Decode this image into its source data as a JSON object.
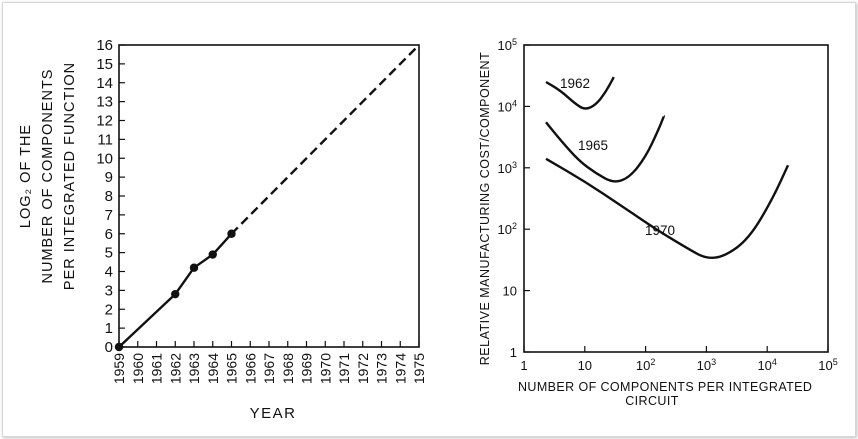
{
  "chart_data": [
    {
      "type": "line",
      "ylabel_lines": [
        "LOG₂ OF THE",
        "NUMBER OF COMPONENTS",
        "PER INTEGRATED FUNCTION"
      ],
      "xlabel": "YEAR",
      "x_ticks": [
        1959,
        1960,
        1961,
        1962,
        1963,
        1964,
        1965,
        1966,
        1967,
        1968,
        1969,
        1970,
        1971,
        1972,
        1973,
        1974,
        1975
      ],
      "y_ticks": [
        0,
        1,
        2,
        3,
        4,
        5,
        6,
        7,
        8,
        9,
        10,
        11,
        12,
        13,
        14,
        15,
        16
      ],
      "xlim": [
        1959,
        1975
      ],
      "ylim": [
        0,
        16
      ],
      "series": [
        {
          "style": "solid-with-markers",
          "x": [
            1959,
            1962,
            1963,
            1964,
            1965
          ],
          "y": [
            0,
            2.8,
            4.2,
            4.9,
            6.0
          ]
        },
        {
          "style": "dashed",
          "x": [
            1965,
            1975
          ],
          "y": [
            6.0,
            16.0
          ]
        }
      ]
    },
    {
      "type": "line",
      "ylabel": "RELATIVE MANUFACTURING COST/COMPONENT",
      "xlabel_lines": [
        "NUMBER OF COMPONENTS PER INTEGRATED",
        "CIRCUIT"
      ],
      "x_scale": "log",
      "y_scale": "log",
      "xlim": [
        1,
        100000
      ],
      "ylim": [
        1,
        100000
      ],
      "x_ticks": [
        {
          "value": 1,
          "base": "1",
          "exp": ""
        },
        {
          "value": 10,
          "base": "10",
          "exp": ""
        },
        {
          "value": 100,
          "base": "10",
          "exp": "2"
        },
        {
          "value": 1000,
          "base": "10",
          "exp": "3"
        },
        {
          "value": 10000,
          "base": "10",
          "exp": "4"
        },
        {
          "value": 100000,
          "base": "10",
          "exp": "5"
        }
      ],
      "y_ticks": [
        {
          "value": 1,
          "base": "1",
          "exp": ""
        },
        {
          "value": 10,
          "base": "10",
          "exp": ""
        },
        {
          "value": 100,
          "base": "10",
          "exp": "2"
        },
        {
          "value": 1000,
          "base": "10",
          "exp": "3"
        },
        {
          "value": 10000,
          "base": "10",
          "exp": "4"
        },
        {
          "value": 100000,
          "base": "10",
          "exp": "5"
        }
      ],
      "series": [
        {
          "name": "1962",
          "x": [
            2.3,
            4,
            7,
            10,
            15,
            22,
            30
          ],
          "y": [
            25000,
            18000,
            11000,
            8800,
            10500,
            17000,
            30000
          ]
        },
        {
          "name": "1965",
          "x": [
            2.3,
            4,
            8,
            15,
            30,
            55,
            100,
            160,
            200
          ],
          "y": [
            5500,
            2800,
            1300,
            820,
            560,
            700,
            1500,
            4000,
            7000
          ]
        },
        {
          "name": "1970",
          "x": [
            2.3,
            10,
            40,
            160,
            500,
            1000,
            2000,
            5000,
            12000,
            22000
          ],
          "y": [
            1400,
            600,
            240,
            95,
            48,
            33,
            36,
            70,
            300,
            1100
          ]
        }
      ]
    }
  ]
}
